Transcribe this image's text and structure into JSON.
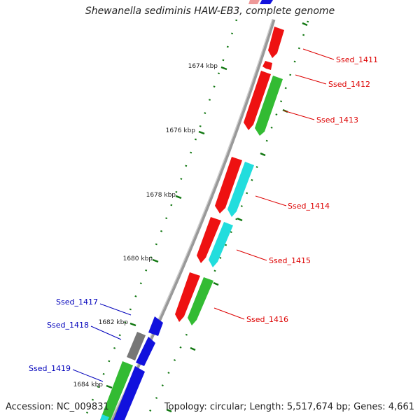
{
  "title": "Shewanella sediminis HAW-EB3, complete genome",
  "footer": {
    "accession": "Accession: NC_009831",
    "summary": "Topology: circular; Length: 5,517,674 bp; Genes: 4,661"
  },
  "colors": {
    "backbone": "#909090",
    "forward_red": "#ee1111",
    "reverse_blue": "#1111dd",
    "cog_green": "#33bb33",
    "cog_cyan": "#22dddd",
    "cog_gray": "#777777",
    "tick": "#117711",
    "label_red": "#dd0000",
    "label_blue": "#0000bb"
  },
  "kbp_ticks": [
    "1674 kbp",
    "1676 kbp",
    "1678 kbp",
    "1680 kbp",
    "1682 kbp",
    "1684 kbp"
  ],
  "gene_labels": [
    {
      "text": "Ssed_1411",
      "strand": "forward"
    },
    {
      "text": "Ssed_1412",
      "strand": "forward"
    },
    {
      "text": "Ssed_1413",
      "strand": "forward"
    },
    {
      "text": "Ssed_1414",
      "strand": "forward"
    },
    {
      "text": "Ssed_1415",
      "strand": "forward"
    },
    {
      "text": "Ssed_1416",
      "strand": "forward"
    },
    {
      "text": "Ssed_1417",
      "strand": "reverse"
    },
    {
      "text": "Ssed_1418",
      "strand": "reverse"
    },
    {
      "text": "Ssed_1419",
      "strand": "reverse"
    }
  ]
}
